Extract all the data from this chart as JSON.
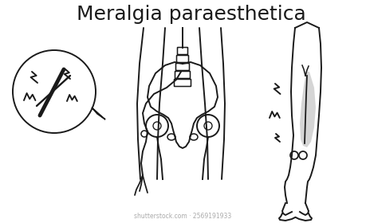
{
  "title": "Meralgia paraesthetica",
  "title_fontsize": 18,
  "bg_color": "#ffffff",
  "line_color": "#1a1a1a",
  "line_width": 1.4,
  "highlight_color": "#c8c8c8",
  "watermark": "shutterstock.com · 2569191933",
  "watermark_color": "#aaaaaa",
  "watermark_fontsize": 5.5
}
